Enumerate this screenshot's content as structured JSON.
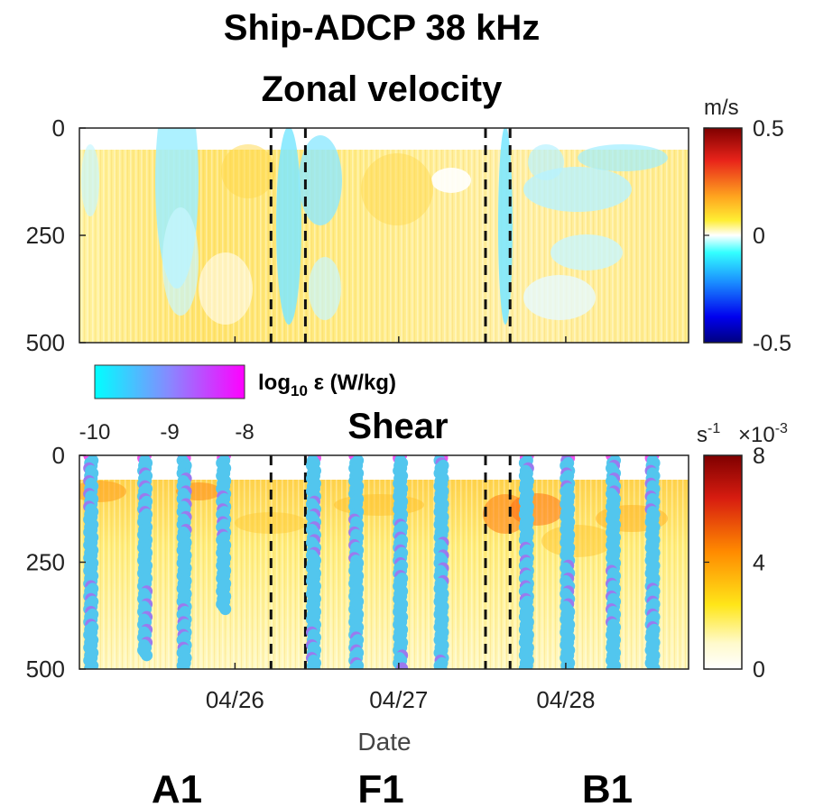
{
  "chart_data": [
    {
      "type": "heatmap",
      "title": "Ship-ADCP 38 kHz",
      "subtitle": "Zonal velocity",
      "ylabel": "",
      "xlabel": "",
      "yticks": [
        "0",
        "250",
        "500"
      ],
      "ylim": [
        0,
        500
      ],
      "y_reversed": true,
      "colorbar": {
        "unit": "m/s",
        "ticks": [
          "0.5",
          "0",
          "-0.5"
        ],
        "range": [
          -0.5,
          0.5
        ],
        "colormap": "blue-cyan-white-yellow-red"
      },
      "dashed_lines_days": [
        1.17,
        1.38,
        2.48,
        2.63
      ]
    },
    {
      "type": "heatmap",
      "title": "Shear",
      "xlabel": "Date",
      "xticks": [
        "04/26",
        "04/27",
        "04/28"
      ],
      "yticks": [
        "0",
        "250",
        "500"
      ],
      "ylim": [
        0,
        500
      ],
      "y_reversed": true,
      "colorbar": {
        "unit": "s",
        "unit_exp": "-1",
        "multiplier": "×10",
        "multiplier_exp": "-3",
        "ticks": [
          "8",
          "4",
          "0"
        ],
        "range": [
          0,
          8
        ],
        "colormap": "white-yellow-orange-red"
      },
      "overlay_legend": {
        "label": "log",
        "label_sub": "10",
        "label_rest": " ε (W/kg)",
        "ticks": [
          "-10",
          "-9",
          "-8"
        ]
      },
      "dissipation_profiles": [
        {
          "day": 0.07,
          "max_depth": 500
        },
        {
          "day": 0.4,
          "max_depth": 470
        },
        {
          "day": 0.64,
          "max_depth": 500
        },
        {
          "day": 0.88,
          "max_depth": 365
        },
        {
          "day": 1.43,
          "max_depth": 500
        },
        {
          "day": 1.69,
          "max_depth": 500
        },
        {
          "day": 1.96,
          "max_depth": 500
        },
        {
          "day": 2.21,
          "max_depth": 500
        },
        {
          "day": 2.73,
          "max_depth": 500
        },
        {
          "day": 2.98,
          "max_depth": 500
        },
        {
          "day": 3.26,
          "max_depth": 500
        },
        {
          "day": 3.5,
          "max_depth": 500
        }
      ],
      "dashed_lines_days": [
        1.17,
        1.38,
        2.48,
        2.63
      ],
      "regions": [
        "A1",
        "F1",
        "B1"
      ]
    }
  ]
}
